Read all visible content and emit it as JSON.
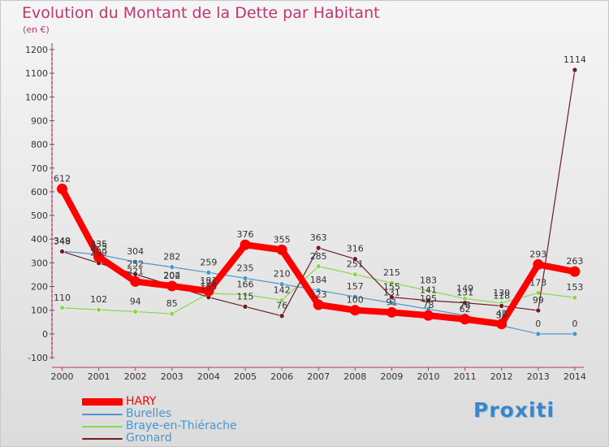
{
  "chart_data": {
    "type": "line",
    "title": "Evolution du Montant de la Dette par Habitant",
    "unit_label": "(en €)",
    "xlabel": "",
    "ylabel": "",
    "ylim": [
      -100,
      1200
    ],
    "y_ticks": [
      -100,
      0,
      100,
      200,
      300,
      400,
      500,
      600,
      700,
      800,
      900,
      1000,
      1100,
      1200
    ],
    "y_tick_labels": [
      "-100",
      "0",
      "100",
      "200",
      "300",
      "400",
      "500",
      "600",
      "700",
      "800",
      "900",
      "1000",
      "1100",
      "1200"
    ],
    "categories": [
      "2000",
      "2001",
      "2002",
      "2003",
      "2004",
      "2005",
      "2006",
      "2007",
      "2008",
      "2009",
      "2010",
      "2011",
      "2012",
      "2013",
      "2014"
    ],
    "grid": false,
    "legend_position": "bottom-left",
    "series": [
      {
        "name": "HARY",
        "color": "#ff0000",
        "values": [
          612,
          325,
          221,
          202,
          181,
          376,
          355,
          123,
          100,
          91,
          78,
          62,
          42,
          293,
          263
        ],
        "labels": [
          "612",
          "325",
          "221",
          "202",
          "181",
          "376",
          "355",
          "123",
          "100",
          "91",
          "78",
          "62",
          "42",
          "293",
          "263"
        ]
      },
      {
        "name": "Burelles",
        "color": "#4a96cf",
        "values": [
          349,
          335,
          304,
          282,
          259,
          235,
          210,
          184,
          157,
          131,
          105,
          78,
          35,
          0,
          0
        ],
        "labels": [
          "349",
          "335",
          "304",
          "282",
          "259",
          "235",
          "210",
          "184",
          "157",
          "131",
          "105",
          "78",
          "35",
          "0",
          "0"
        ]
      },
      {
        "name": "Braye-en-Thiérache",
        "color": "#88d74e",
        "values": [
          110,
          102,
          94,
          85,
          171,
          166,
          142,
          285,
          251,
          215,
          183,
          149,
          130,
          173,
          153
        ],
        "labels": [
          "110",
          "102",
          "94",
          "85",
          "171",
          "166",
          "142",
          "285",
          "251",
          "215",
          "183",
          "149",
          "130",
          "173",
          "153"
        ]
      },
      {
        "name": "Gronard",
        "color": "#6e1e24",
        "values": [
          348,
          299,
          252,
          204,
          155,
          115,
          76,
          363,
          316,
          155,
          141,
          131,
          118,
          99,
          1114
        ],
        "labels": [
          "348",
          "299",
          "252",
          "204",
          "155",
          "115",
          "76",
          "363",
          "316",
          "155",
          "141",
          "131",
          "118",
          "99",
          "1114"
        ]
      }
    ]
  },
  "legend": {
    "items": [
      {
        "label": "HARY",
        "color": "#ff0000"
      },
      {
        "label": "Burelles",
        "color": "#4a96cf"
      },
      {
        "label": "Braye-en-Thiérache",
        "color": "#88d74e"
      },
      {
        "label": "Gronard",
        "color": "#6e1e24"
      }
    ]
  },
  "logo": {
    "text": "Proxiti"
  }
}
